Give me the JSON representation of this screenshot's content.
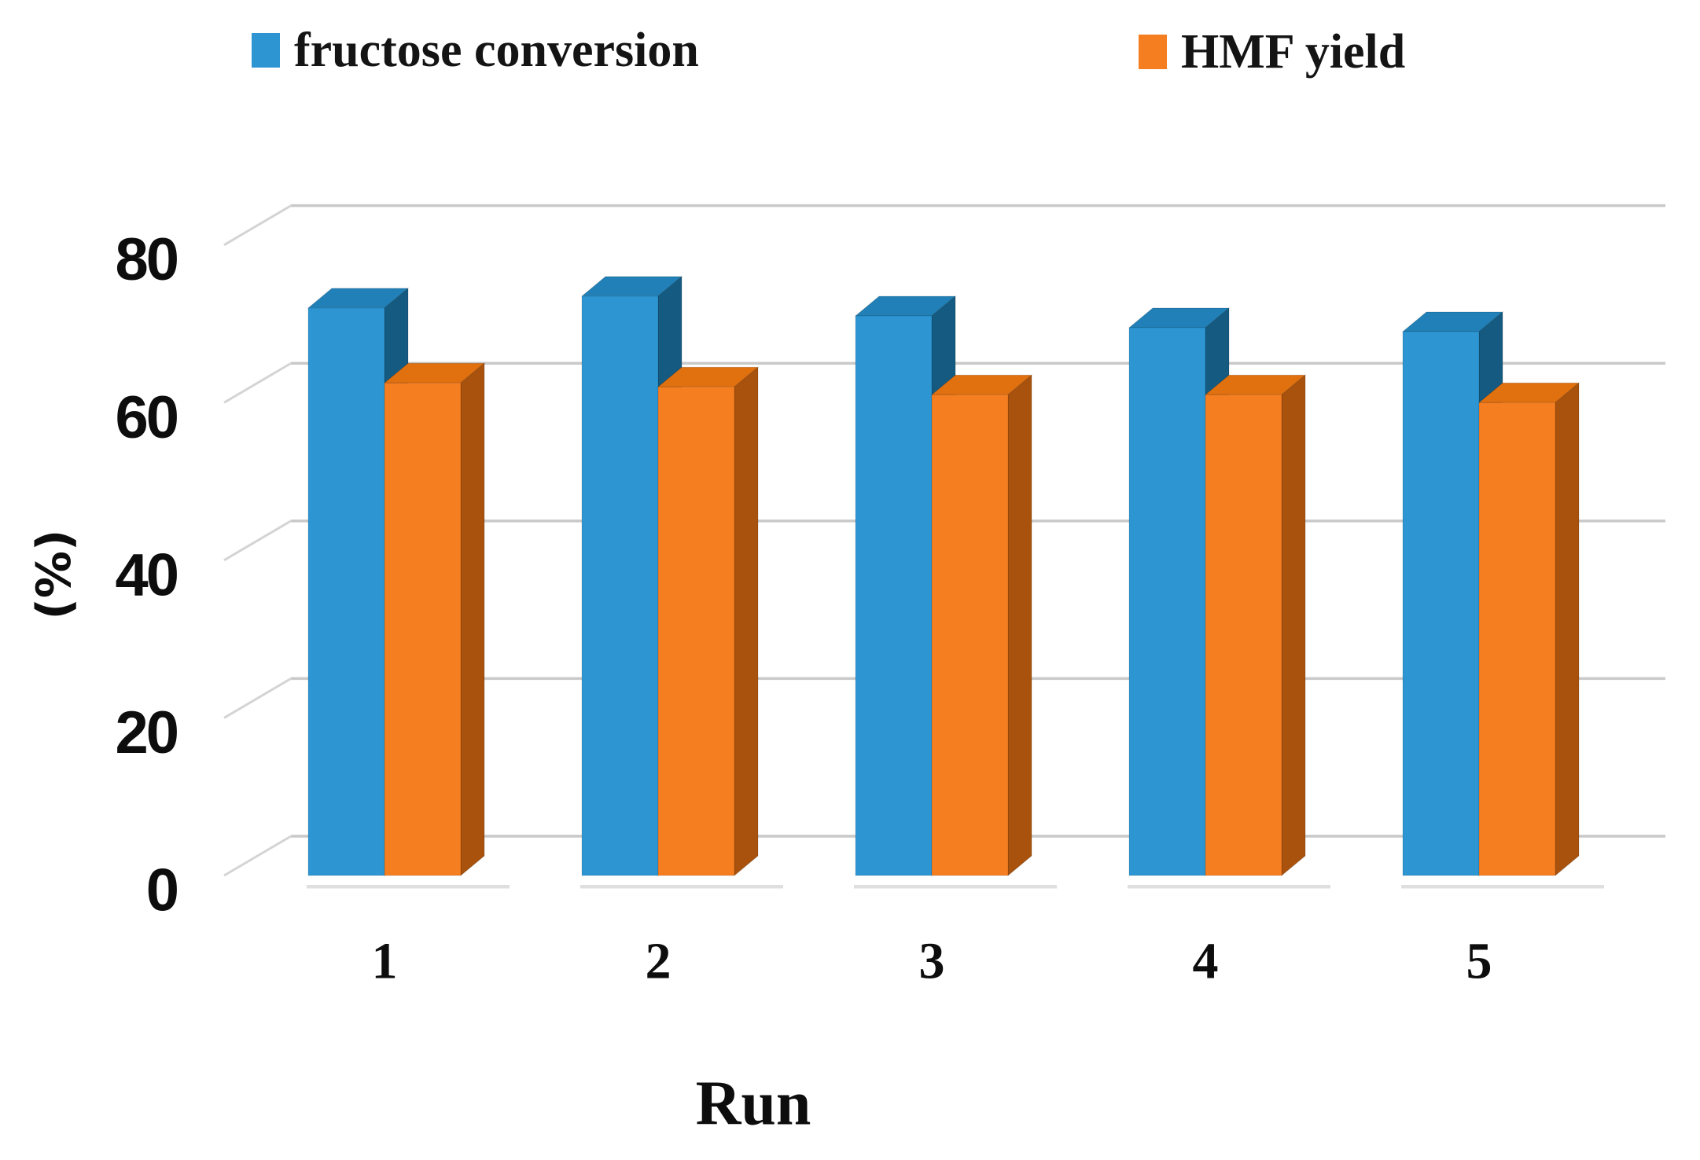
{
  "legend": {
    "items": [
      {
        "label": "fructose conversion"
      },
      {
        "label": "HMF yield"
      }
    ]
  },
  "y_axis": {
    "title": "(%)"
  },
  "x_axis": {
    "title": "Run"
  },
  "chart_data": {
    "type": "bar",
    "style": "3d-clustered-column",
    "title": "",
    "xlabel": "Run",
    "ylabel": "(%)",
    "categories": [
      "1",
      "2",
      "3",
      "4",
      "5"
    ],
    "series": [
      {
        "name": "fructose conversion",
        "values": [
          72,
          73.5,
          71,
          69.5,
          69
        ],
        "colors": {
          "front": "#2D96D2",
          "top": "#2180B7",
          "side": "#155A80"
        }
      },
      {
        "name": "HMF yield",
        "values": [
          62.5,
          62,
          61,
          61,
          60
        ],
        "colors": {
          "front": "#F57E20",
          "top": "#E1700F",
          "side": "#A8520D"
        }
      }
    ],
    "ylim": [
      0,
      80
    ],
    "yticks": [
      0,
      20,
      40,
      60,
      80
    ],
    "grid": true,
    "legend_position": "top",
    "gridline_color": "#C9C9C9",
    "wall_diagonal_color": "#D4D4D4",
    "shadow_color": "#DCDCDC"
  }
}
